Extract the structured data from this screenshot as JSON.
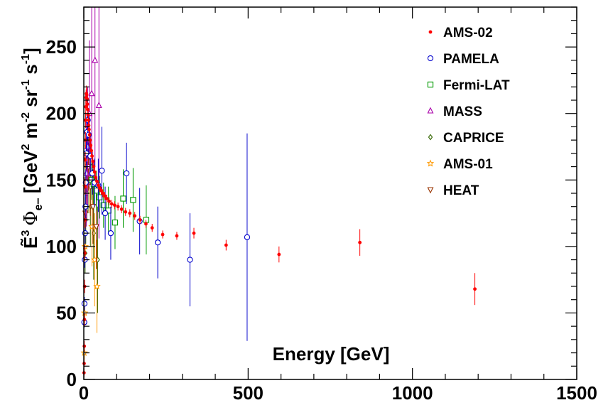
{
  "chart_data": {
    "type": "scatter",
    "xlabel": "Energy [GeV]",
    "ylabel": "Ẽ3 Φe− [GeV2 m-2 sr-1 s-1]",
    "xlim": [
      0,
      1500
    ],
    "ylim": [
      0,
      280
    ],
    "x_ticks": [
      0,
      500,
      1000,
      1500
    ],
    "y_ticks": [
      0,
      50,
      100,
      150,
      200,
      250
    ],
    "legend_position": "top-right",
    "grid": false,
    "series": [
      {
        "name": "AMS-02",
        "color": "#ff0000",
        "marker": "dot",
        "points": [
          {
            "x": 0.6,
            "y": 5,
            "err": 3
          },
          {
            "x": 1.0,
            "y": 12,
            "err": 3
          },
          {
            "x": 1.5,
            "y": 25,
            "err": 4
          },
          {
            "x": 2.0,
            "y": 45,
            "err": 5
          },
          {
            "x": 2.5,
            "y": 70,
            "err": 5
          },
          {
            "x": 3.0,
            "y": 95,
            "err": 6
          },
          {
            "x": 3.5,
            "y": 120,
            "err": 6
          },
          {
            "x": 4.0,
            "y": 145,
            "err": 6
          },
          {
            "x": 4.5,
            "y": 165,
            "err": 6
          },
          {
            "x": 5.0,
            "y": 180,
            "err": 6
          },
          {
            "x": 5.5,
            "y": 195,
            "err": 6
          },
          {
            "x": 6.0,
            "y": 205,
            "err": 6
          },
          {
            "x": 7.0,
            "y": 212,
            "err": 6
          },
          {
            "x": 8.0,
            "y": 215,
            "err": 6
          },
          {
            "x": 9.0,
            "y": 214,
            "err": 5
          },
          {
            "x": 10.0,
            "y": 211,
            "err": 5
          },
          {
            "x": 11.0,
            "y": 207,
            "err": 5
          },
          {
            "x": 12.0,
            "y": 203,
            "err": 5
          },
          {
            "x": 13.0,
            "y": 199,
            "err": 5
          },
          {
            "x": 14.0,
            "y": 195,
            "err": 4
          },
          {
            "x": 15.0,
            "y": 191,
            "err": 4
          },
          {
            "x": 16.0,
            "y": 188,
            "err": 4
          },
          {
            "x": 17.5,
            "y": 184,
            "err": 4
          },
          {
            "x": 19.0,
            "y": 180,
            "err": 4
          },
          {
            "x": 21.0,
            "y": 176,
            "err": 4
          },
          {
            "x": 23.0,
            "y": 172,
            "err": 4
          },
          {
            "x": 25.0,
            "y": 168,
            "err": 3
          },
          {
            "x": 27.5,
            "y": 164,
            "err": 3
          },
          {
            "x": 30.0,
            "y": 160,
            "err": 3
          },
          {
            "x": 33.0,
            "y": 156,
            "err": 3
          },
          {
            "x": 36.0,
            "y": 152,
            "err": 3
          },
          {
            "x": 40.0,
            "y": 149,
            "err": 3
          },
          {
            "x": 44.0,
            "y": 146,
            "err": 3
          },
          {
            "x": 48.0,
            "y": 144,
            "err": 3
          },
          {
            "x": 53.0,
            "y": 142,
            "err": 3
          },
          {
            "x": 58.0,
            "y": 140,
            "err": 3
          },
          {
            "x": 64.0,
            "y": 138,
            "err": 3
          },
          {
            "x": 70.0,
            "y": 136,
            "err": 3
          },
          {
            "x": 77.0,
            "y": 134,
            "err": 3
          },
          {
            "x": 85.0,
            "y": 132,
            "err": 3
          },
          {
            "x": 94.0,
            "y": 131,
            "err": 3
          },
          {
            "x": 104.0,
            "y": 130,
            "err": 3
          },
          {
            "x": 115.0,
            "y": 128,
            "err": 3
          },
          {
            "x": 127.0,
            "y": 126,
            "err": 3
          },
          {
            "x": 140.0,
            "y": 125,
            "err": 3
          },
          {
            "x": 155.0,
            "y": 123,
            "err": 3
          },
          {
            "x": 171.0,
            "y": 120,
            "err": 3
          },
          {
            "x": 189.0,
            "y": 117,
            "err": 3
          },
          {
            "x": 208.0,
            "y": 114,
            "err": 3
          },
          {
            "x": 240.0,
            "y": 109,
            "err": 3
          },
          {
            "x": 283.0,
            "y": 108,
            "err": 3
          },
          {
            "x": 335.0,
            "y": 110,
            "err": 4
          },
          {
            "x": 433.0,
            "y": 101,
            "err": 4
          },
          {
            "x": 594.0,
            "y": 94,
            "err": 6
          },
          {
            "x": 840.0,
            "y": 103,
            "err": 10
          },
          {
            "x": 1190.0,
            "y": 68,
            "err": 12
          }
        ]
      },
      {
        "name": "PAMELA",
        "color": "#0000cc",
        "marker": "open-circle",
        "points": [
          {
            "x": 1.5,
            "y": 43,
            "err": 4
          },
          {
            "x": 2.0,
            "y": 57,
            "err": 5
          },
          {
            "x": 3.0,
            "y": 90,
            "err": 6
          },
          {
            "x": 4.0,
            "y": 110,
            "err": 8
          },
          {
            "x": 5.0,
            "y": 130,
            "err": 9
          },
          {
            "x": 6.0,
            "y": 148,
            "err": 10
          },
          {
            "x": 8.0,
            "y": 170,
            "err": 12
          },
          {
            "x": 10.0,
            "y": 186,
            "err": 14
          },
          {
            "x": 12.0,
            "y": 195,
            "err": 15
          },
          {
            "x": 15.0,
            "y": 184,
            "err": 15
          },
          {
            "x": 20.0,
            "y": 168,
            "err": 15
          },
          {
            "x": 26.0,
            "y": 155,
            "err": 16
          },
          {
            "x": 33.0,
            "y": 148,
            "err": 18
          },
          {
            "x": 44.0,
            "y": 146,
            "err": 20
          },
          {
            "x": 55.0,
            "y": 157,
            "err": 33
          },
          {
            "x": 65.0,
            "y": 125,
            "err": 20
          },
          {
            "x": 82.0,
            "y": 110,
            "err": 20
          },
          {
            "x": 130.0,
            "y": 155,
            "err": 23
          },
          {
            "x": 170.0,
            "y": 119,
            "err": 25
          },
          {
            "x": 225.0,
            "y": 103,
            "err": 27
          },
          {
            "x": 323.0,
            "y": 90,
            "err": 35
          },
          {
            "x": 497.0,
            "y": 107,
            "err": 78
          }
        ]
      },
      {
        "name": "Fermi-LAT",
        "color": "#009900",
        "marker": "open-square",
        "points": [
          {
            "x": 24.0,
            "y": 150,
            "err": 15
          },
          {
            "x": 30.0,
            "y": 147,
            "err": 15
          },
          {
            "x": 38.0,
            "y": 142,
            "err": 15
          },
          {
            "x": 48.0,
            "y": 137,
            "err": 16
          },
          {
            "x": 60.0,
            "y": 131,
            "err": 17
          },
          {
            "x": 75.0,
            "y": 127,
            "err": 18
          },
          {
            "x": 95.0,
            "y": 118,
            "err": 20
          },
          {
            "x": 120.0,
            "y": 136,
            "err": 22
          },
          {
            "x": 150.0,
            "y": 135,
            "err": 24
          },
          {
            "x": 190.0,
            "y": 120,
            "err": 26
          }
        ]
      },
      {
        "name": "MASS",
        "color": "#aa00aa",
        "marker": "open-triangle",
        "points": [
          {
            "x": 8.0,
            "y": 155,
            "err": 40
          },
          {
            "x": 12.0,
            "y": 175,
            "err": 45
          },
          {
            "x": 17.0,
            "y": 200,
            "err": 55
          },
          {
            "x": 24.0,
            "y": 215,
            "err": 65
          },
          {
            "x": 34.0,
            "y": 240,
            "err": 80
          },
          {
            "x": 46.0,
            "y": 206,
            "err": 100
          }
        ]
      },
      {
        "name": "CAPRICE",
        "color": "#336600",
        "marker": "open-diamond",
        "points": [
          {
            "x": 4.0,
            "y": 95,
            "err": 15
          },
          {
            "x": 6.0,
            "y": 120,
            "err": 18
          },
          {
            "x": 9.0,
            "y": 140,
            "err": 20
          },
          {
            "x": 13.0,
            "y": 150,
            "err": 25
          },
          {
            "x": 20.0,
            "y": 130,
            "err": 30
          },
          {
            "x": 30.0,
            "y": 110,
            "err": 35
          },
          {
            "x": 42.0,
            "y": 90,
            "err": 40
          }
        ]
      },
      {
        "name": "AMS-01",
        "color": "#ff9900",
        "marker": "open-star",
        "points": [
          {
            "x": 1.5,
            "y": 20,
            "err": 5
          },
          {
            "x": 2.5,
            "y": 50,
            "err": 8
          },
          {
            "x": 4.0,
            "y": 100,
            "err": 12
          },
          {
            "x": 6.0,
            "y": 145,
            "err": 15
          },
          {
            "x": 9.0,
            "y": 170,
            "err": 18
          },
          {
            "x": 13.0,
            "y": 175,
            "err": 20
          },
          {
            "x": 18.0,
            "y": 150,
            "err": 25
          },
          {
            "x": 25.0,
            "y": 115,
            "err": 30
          },
          {
            "x": 33.0,
            "y": 90,
            "err": 35
          },
          {
            "x": 40.0,
            "y": 70,
            "err": 35
          }
        ]
      },
      {
        "name": "HEAT",
        "color": "#993300",
        "marker": "open-triangle-down",
        "points": [
          {
            "x": 5.0,
            "y": 125,
            "err": 12
          },
          {
            "x": 7.0,
            "y": 150,
            "err": 14
          },
          {
            "x": 10.0,
            "y": 165,
            "err": 16
          },
          {
            "x": 14.0,
            "y": 160,
            "err": 18
          },
          {
            "x": 20.0,
            "y": 145,
            "err": 22
          },
          {
            "x": 28.0,
            "y": 130,
            "err": 28
          },
          {
            "x": 38.0,
            "y": 115,
            "err": 32
          }
        ]
      }
    ]
  }
}
